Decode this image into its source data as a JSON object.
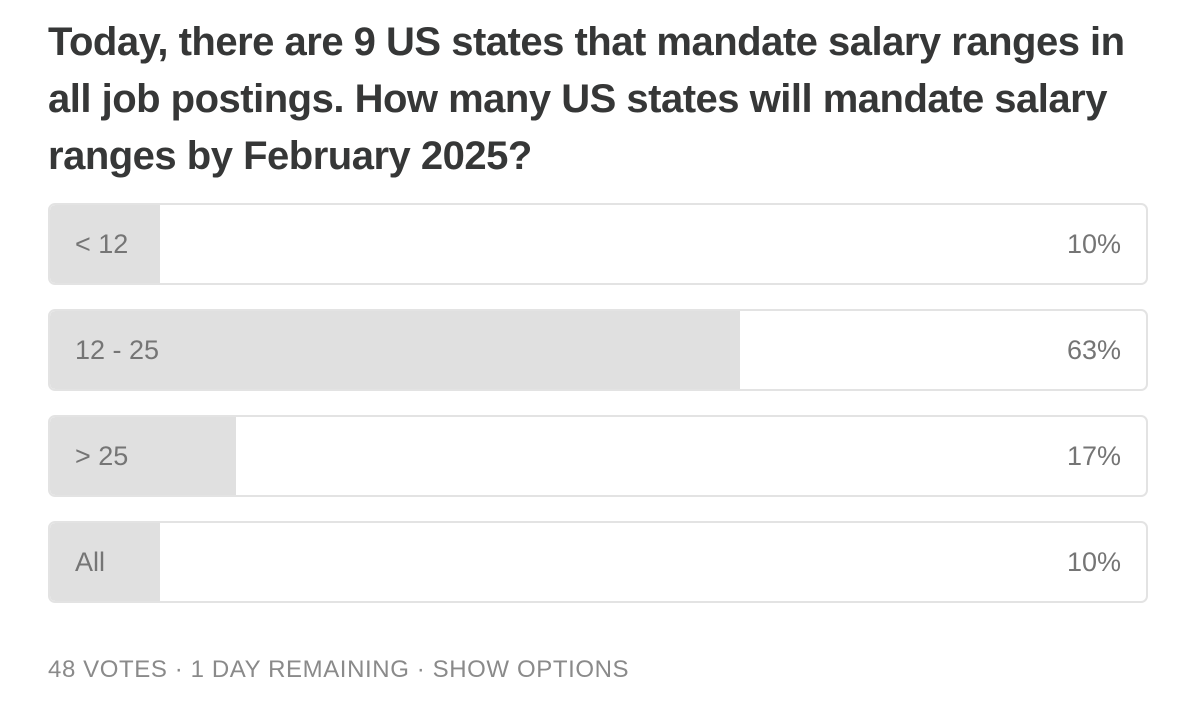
{
  "poll": {
    "question": "Today, there are 9 US states that mandate salary ranges in all job postings. How many US states will mandate salary ranges by February 2025?",
    "options": [
      {
        "label": "< 12",
        "percent_label": "10%",
        "percent": 10
      },
      {
        "label": "12 - 25",
        "percent_label": "63%",
        "percent": 63
      },
      {
        "label": "> 25",
        "percent_label": "17%",
        "percent": 17
      },
      {
        "label": "All",
        "percent_label": "10%",
        "percent": 10
      }
    ],
    "colors": {
      "question_text": "#363737",
      "option_text": "#757575",
      "fill": "#e0e0e0",
      "border": "#e3e3e3",
      "footer_text": "#8a8a8a"
    }
  },
  "footer": {
    "votes": "48 VOTES",
    "separator": " · ",
    "remaining": "1 DAY REMAINING",
    "show_options": "SHOW OPTIONS"
  }
}
